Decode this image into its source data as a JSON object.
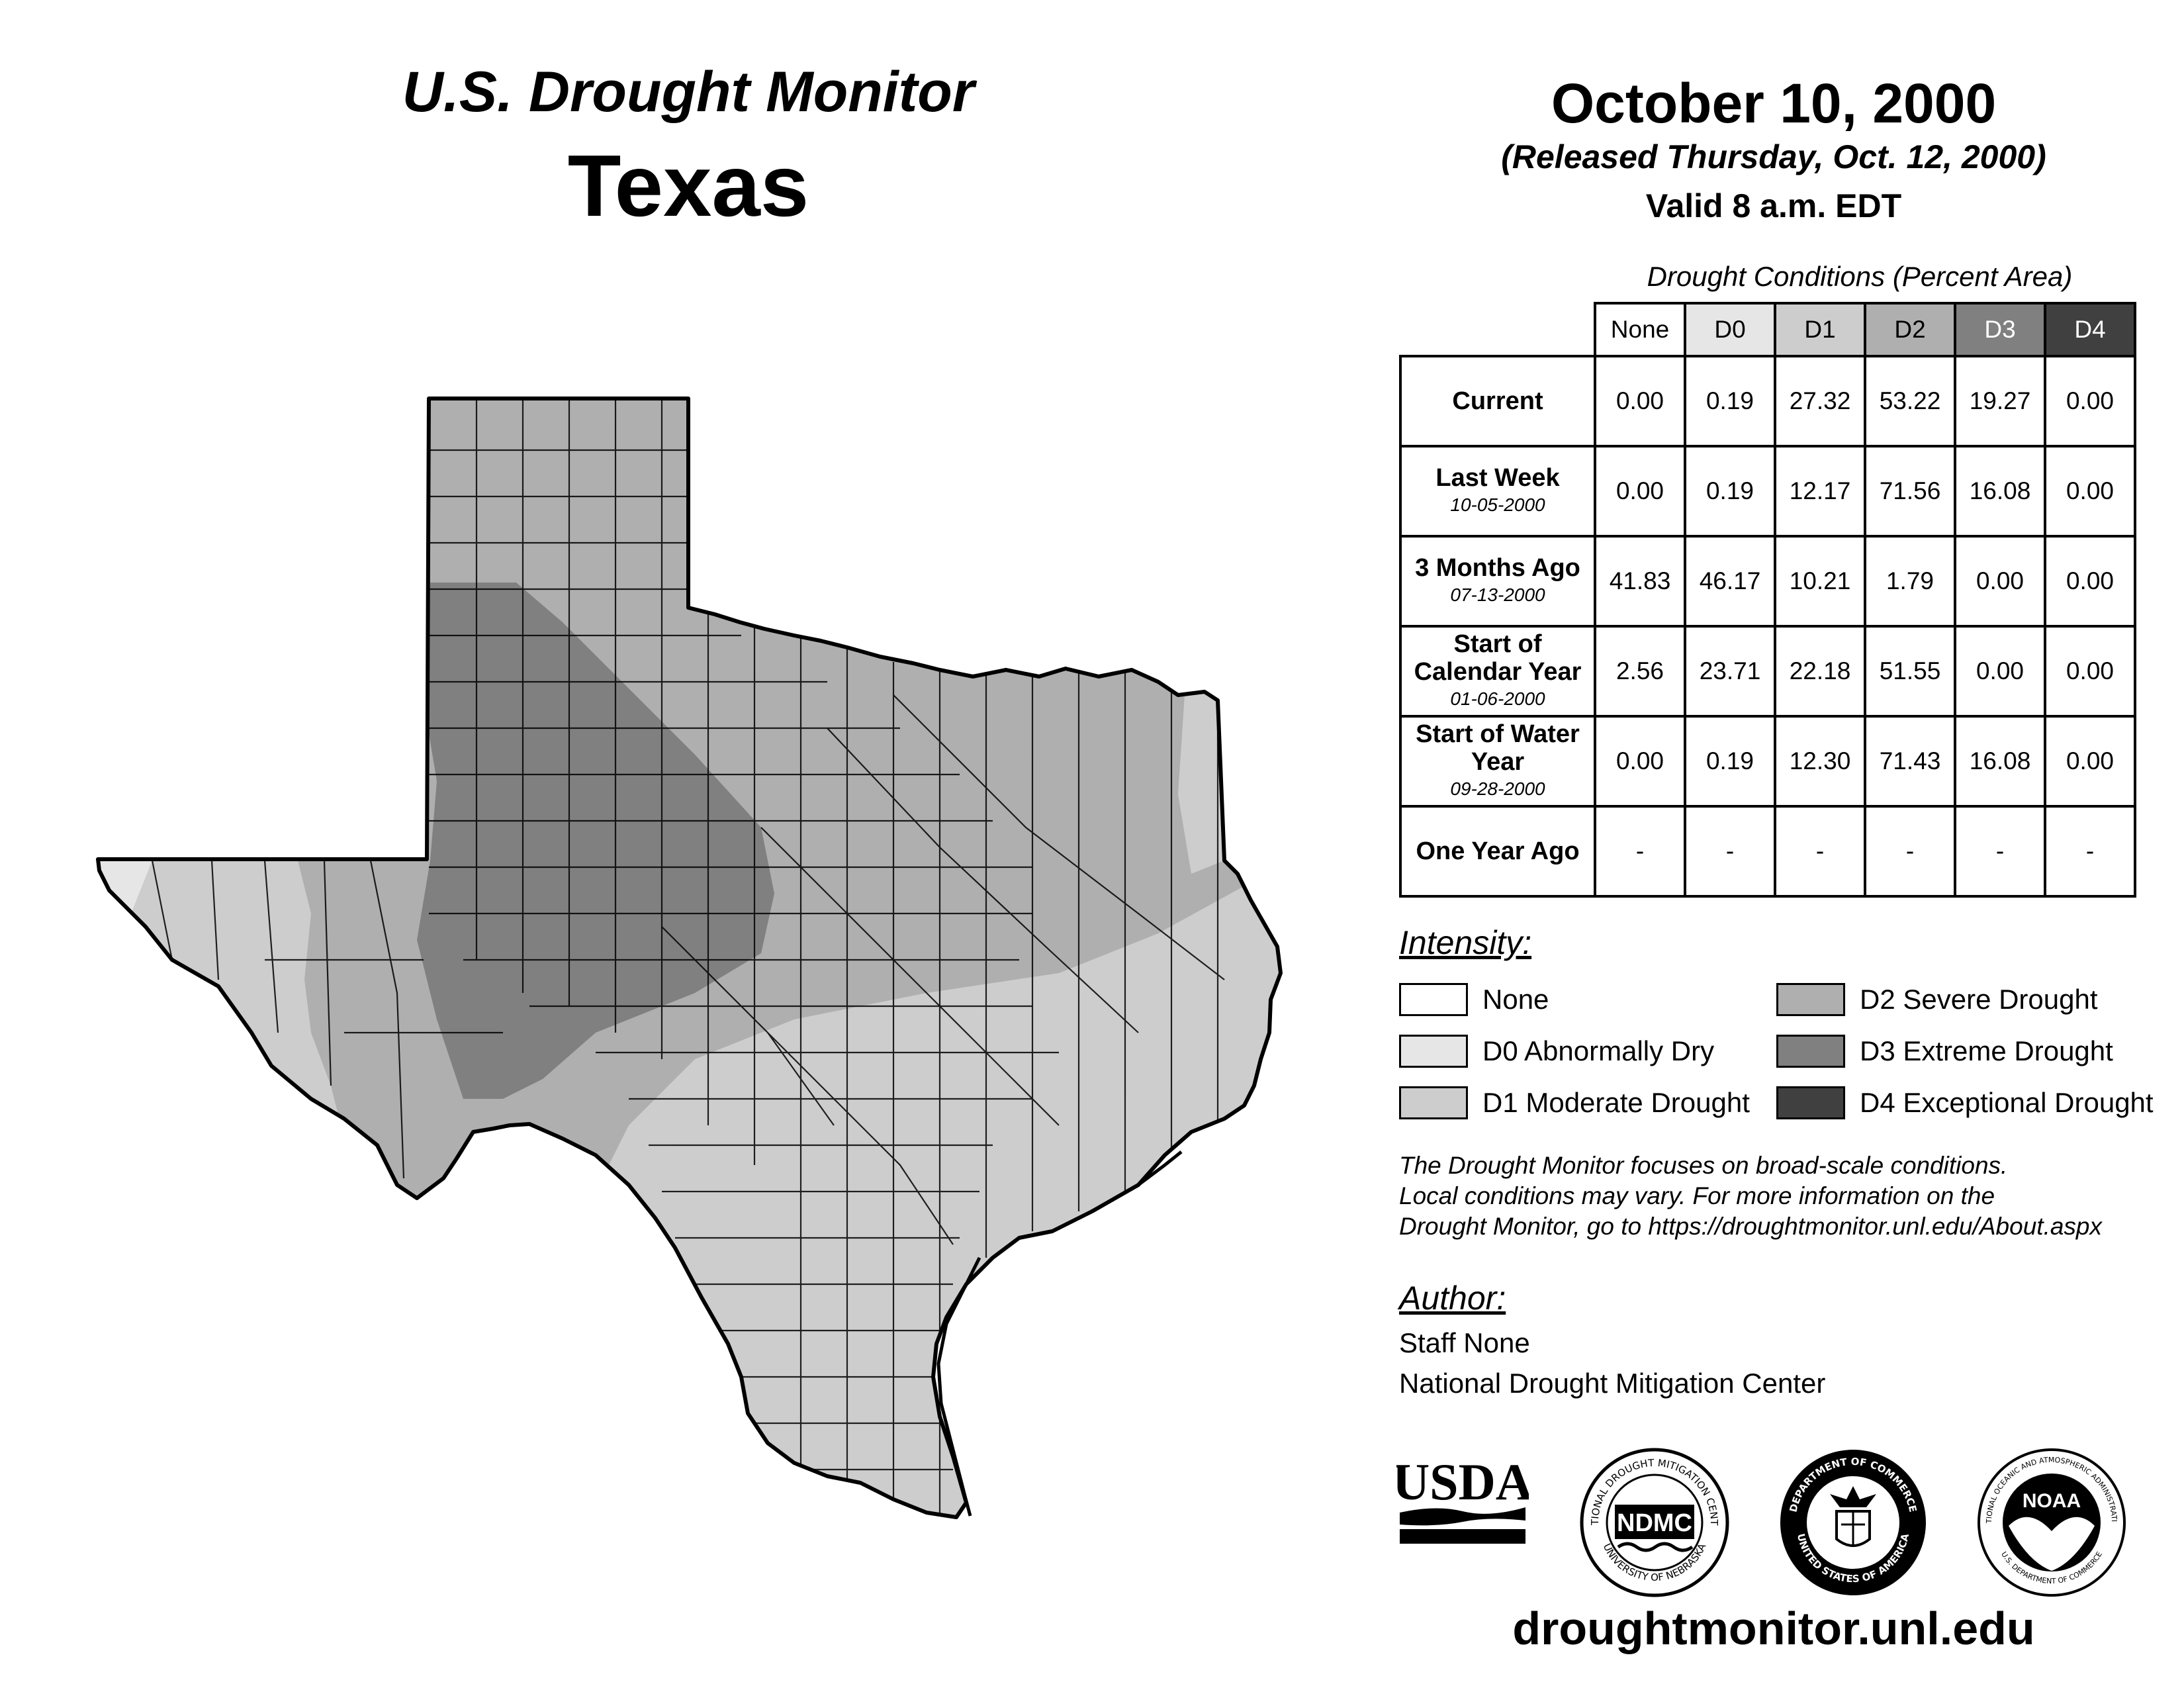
{
  "header": {
    "line1": "U.S. Drought Monitor",
    "region": "Texas"
  },
  "map_info": {
    "date": "October 10, 2000",
    "released": "(Released Thursday, Oct. 12, 2000)",
    "valid": "Valid 8 a.m. EDT"
  },
  "table": {
    "title": "Drought Conditions (Percent Area)",
    "columns": [
      "None",
      "D0",
      "D1",
      "D2",
      "D3",
      "D4"
    ],
    "rows": [
      {
        "label": "Current",
        "date": "",
        "values": [
          "0.00",
          "0.19",
          "27.32",
          "53.22",
          "19.27",
          "0.00"
        ]
      },
      {
        "label": "Last Week",
        "date": "10-05-2000",
        "values": [
          "0.00",
          "0.19",
          "12.17",
          "71.56",
          "16.08",
          "0.00"
        ]
      },
      {
        "label": "3 Months Ago",
        "date": "07-13-2000",
        "values": [
          "41.83",
          "46.17",
          "10.21",
          "1.79",
          "0.00",
          "0.00"
        ]
      },
      {
        "label": "Start of Calendar Year",
        "date": "01-06-2000",
        "values": [
          "2.56",
          "23.71",
          "22.18",
          "51.55",
          "0.00",
          "0.00"
        ]
      },
      {
        "label": "Start of Water Year",
        "date": "09-28-2000",
        "values": [
          "0.00",
          "0.19",
          "12.30",
          "71.43",
          "16.08",
          "0.00"
        ]
      },
      {
        "label": "One Year Ago",
        "date": "",
        "values": [
          "-",
          "-",
          "-",
          "-",
          "-",
          "-"
        ]
      }
    ]
  },
  "legend": {
    "title": "Intensity:",
    "items": [
      {
        "label": "None",
        "color": "#ffffff"
      },
      {
        "label": "D0 Abnormally Dry",
        "color": "#e6e6e6"
      },
      {
        "label": "D1 Moderate Drought",
        "color": "#cdcdcd"
      },
      {
        "label": "D2 Severe Drought",
        "color": "#afafaf"
      },
      {
        "label": "D3 Extreme Drought",
        "color": "#808080"
      },
      {
        "label": "D4 Exceptional Drought",
        "color": "#404040"
      }
    ]
  },
  "note": {
    "line1": "The Drought Monitor focuses on broad-scale conditions.",
    "line2": "Local conditions may vary. For more information on the",
    "line3": "Drought Monitor, go to https://droughtmonitor.unl.edu/About.aspx"
  },
  "author": {
    "title": "Author:",
    "name": "Staff None",
    "org": "National Drought Mitigation Center"
  },
  "logos": {
    "usda": "USDA",
    "ndmc": "NDMC",
    "ndmc_ring_top": "NATIONAL DROUGHT MITIGATION CENTER",
    "ndmc_ring_bottom": "UNIVERSITY OF NEBRASKA",
    "doc_ring_top": "DEPARTMENT OF COMMERCE",
    "doc_ring_bottom": "UNITED STATES OF AMERICA",
    "noaa": "NOAA",
    "noaa_ring_top": "NATIONAL OCEANIC AND ATMOSPHERIC ADMINISTRATION",
    "noaa_ring_bottom": "U.S. DEPARTMENT OF COMMERCE"
  },
  "footer": {
    "url": "droughtmonitor.unl.edu"
  }
}
